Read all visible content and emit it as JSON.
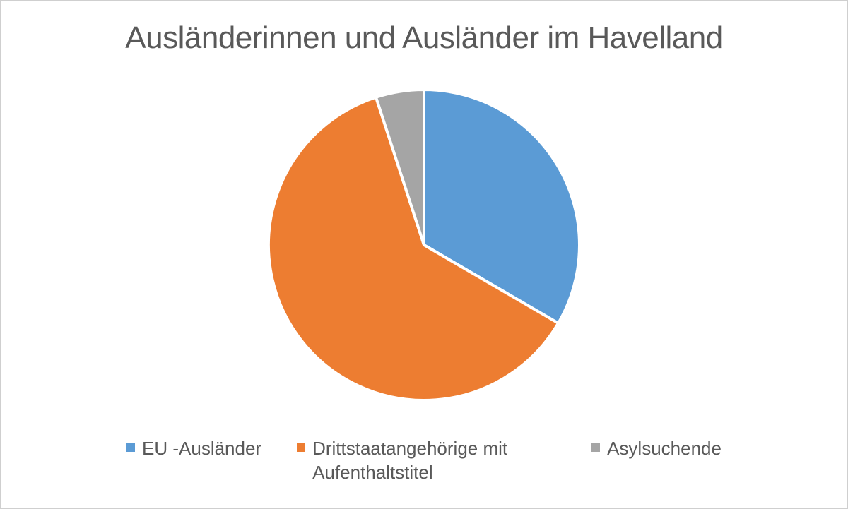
{
  "frame": {
    "background": "#ffffff",
    "border_color": "#cfcfcf"
  },
  "chart_data": {
    "type": "pie",
    "title": "Ausländerinnen und Ausländer im Havelland",
    "categories": [
      "EU -Ausländer",
      "Drittstaatangehörige mit Aufenthaltstitel",
      "Asylsuchende"
    ],
    "values": [
      33.4,
      61.6,
      5.0
    ],
    "values_unit": "percent (estimated from slice angles)",
    "colors": [
      "#5b9bd5",
      "#ed7d31",
      "#a5a5a5"
    ],
    "slice_border_color": "#ffffff",
    "start_angle_deg": 0,
    "direction": "clockwise",
    "legend_position": "bottom",
    "text_color": "#595959",
    "data_labels_shown": false
  },
  "legend": {
    "items": [
      {
        "label": "EU -Ausländer",
        "color": "#5b9bd5"
      },
      {
        "label": "Drittstaatangehörige mit Aufenthaltstitel",
        "color": "#ed7d31"
      },
      {
        "label": "Asylsuchende",
        "color": "#a5a5a5"
      }
    ]
  }
}
